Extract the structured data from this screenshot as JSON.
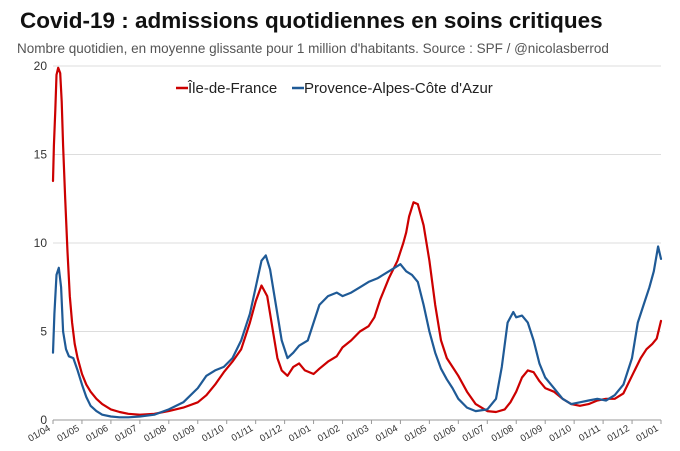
{
  "title": "Covid-19 : admissions quotidiennes en soins critiques",
  "subtitle": "Nombre quotidien, en moyenne glissante pour 1 million d'habitants. Source : SPF / @nicolasberrod",
  "chart_data": {
    "type": "line",
    "title": "Covid-19 : admissions quotidiennes en soins critiques",
    "subtitle": "Nombre quotidien, en moyenne glissante pour 1 million d'habitants. Source : SPF / @nicolasberrod",
    "xlabel": "",
    "ylabel": "",
    "ylim": [
      0,
      20
    ],
    "yticks": [
      0,
      5,
      10,
      15,
      20
    ],
    "xlim": [
      0,
      21
    ],
    "xtick_labels": [
      "01/04",
      "01/05",
      "01/06",
      "01/07",
      "01/08",
      "01/09",
      "01/10",
      "01/11",
      "01/12",
      "01/01",
      "01/02",
      "01/03",
      "01/04",
      "01/05",
      "01/06",
      "01/07",
      "01/08",
      "01/09",
      "01/10",
      "01/11",
      "01/12",
      "01/01"
    ],
    "x_unit": "months since 01/04",
    "grid": "horizontal",
    "legend_position": "top-center",
    "series": [
      {
        "name": "Île-de-France",
        "color": "#cc0000",
        "x": [
          0,
          0.03,
          0.08,
          0.12,
          0.18,
          0.25,
          0.3,
          0.35,
          0.42,
          0.5,
          0.58,
          0.66,
          0.75,
          0.85,
          1.0,
          1.15,
          1.3,
          1.5,
          1.7,
          2.0,
          2.3,
          2.6,
          3.0,
          3.5,
          4.0,
          4.5,
          5.0,
          5.3,
          5.6,
          5.9,
          6.2,
          6.5,
          6.8,
          7.0,
          7.2,
          7.4,
          7.6,
          7.75,
          7.9,
          8.1,
          8.3,
          8.5,
          8.7,
          9.0,
          9.2,
          9.5,
          9.8,
          10.0,
          10.3,
          10.6,
          10.9,
          11.1,
          11.3,
          11.6,
          11.9,
          12.0,
          12.1,
          12.2,
          12.3,
          12.45,
          12.6,
          12.8,
          13.0,
          13.2,
          13.4,
          13.6,
          13.8,
          14.0,
          14.3,
          14.6,
          15.0,
          15.3,
          15.6,
          15.8,
          16.0,
          16.2,
          16.4,
          16.6,
          16.8,
          17.0,
          17.3,
          17.6,
          17.9,
          18.2,
          18.5,
          18.8,
          19.1,
          19.4,
          19.7,
          20.0,
          20.3,
          20.5,
          20.7,
          20.85,
          21.0
        ],
        "values": [
          13.5,
          15.5,
          17.5,
          19.5,
          19.9,
          19.6,
          18.0,
          15.5,
          12.5,
          9.5,
          7.0,
          5.5,
          4.3,
          3.5,
          2.6,
          2.0,
          1.6,
          1.2,
          0.9,
          0.6,
          0.45,
          0.35,
          0.3,
          0.35,
          0.5,
          0.7,
          1.0,
          1.4,
          2.0,
          2.7,
          3.3,
          4.0,
          5.5,
          6.7,
          7.6,
          7.0,
          5.0,
          3.5,
          2.8,
          2.5,
          3.0,
          3.2,
          2.8,
          2.6,
          2.9,
          3.3,
          3.6,
          4.1,
          4.5,
          5.0,
          5.3,
          5.8,
          6.8,
          8.0,
          9.0,
          9.5,
          10.0,
          10.6,
          11.5,
          12.3,
          12.2,
          11.0,
          9.0,
          6.5,
          4.5,
          3.5,
          3.0,
          2.5,
          1.6,
          0.9,
          0.5,
          0.45,
          0.6,
          1.0,
          1.6,
          2.4,
          2.8,
          2.7,
          2.2,
          1.8,
          1.6,
          1.2,
          0.9,
          0.8,
          0.9,
          1.1,
          1.2,
          1.2,
          1.5,
          2.5,
          3.5,
          4.0,
          4.3,
          4.6,
          5.6
        ]
      },
      {
        "name": "Provence-Alpes-Côte d'Azur",
        "color": "#1f5a96",
        "x": [
          0,
          0.05,
          0.12,
          0.2,
          0.28,
          0.35,
          0.45,
          0.55,
          0.7,
          0.85,
          1.0,
          1.15,
          1.3,
          1.5,
          1.7,
          2.0,
          2.3,
          2.6,
          3.0,
          3.5,
          4.0,
          4.5,
          5.0,
          5.3,
          5.6,
          5.9,
          6.2,
          6.5,
          6.8,
          7.0,
          7.2,
          7.35,
          7.5,
          7.7,
          7.9,
          8.1,
          8.3,
          8.5,
          8.8,
          9.0,
          9.2,
          9.5,
          9.8,
          10.0,
          10.3,
          10.6,
          10.9,
          11.2,
          11.5,
          11.8,
          12.0,
          12.2,
          12.4,
          12.6,
          12.8,
          13.0,
          13.2,
          13.4,
          13.6,
          13.8,
          14.0,
          14.3,
          14.6,
          15.0,
          15.3,
          15.5,
          15.7,
          15.9,
          16.0,
          16.2,
          16.4,
          16.6,
          16.8,
          17.0,
          17.3,
          17.6,
          17.9,
          18.2,
          18.5,
          18.8,
          19.1,
          19.4,
          19.7,
          20.0,
          20.2,
          20.4,
          20.6,
          20.75,
          20.9,
          21.0
        ],
        "values": [
          3.8,
          6.0,
          8.2,
          8.6,
          7.5,
          5.0,
          4.0,
          3.6,
          3.5,
          2.8,
          2.0,
          1.3,
          0.8,
          0.5,
          0.3,
          0.2,
          0.15,
          0.15,
          0.2,
          0.3,
          0.6,
          1.0,
          1.8,
          2.5,
          2.8,
          3.0,
          3.5,
          4.5,
          6.0,
          7.5,
          9.0,
          9.3,
          8.5,
          6.5,
          4.5,
          3.5,
          3.8,
          4.2,
          4.5,
          5.5,
          6.5,
          7.0,
          7.2,
          7.0,
          7.2,
          7.5,
          7.8,
          8.0,
          8.3,
          8.6,
          8.8,
          8.4,
          8.2,
          7.8,
          6.5,
          5.0,
          3.8,
          2.9,
          2.3,
          1.8,
          1.2,
          0.7,
          0.5,
          0.6,
          1.2,
          3.0,
          5.5,
          6.1,
          5.8,
          5.9,
          5.5,
          4.5,
          3.2,
          2.4,
          1.8,
          1.2,
          0.9,
          1.0,
          1.1,
          1.2,
          1.1,
          1.4,
          2.0,
          3.5,
          5.5,
          6.5,
          7.5,
          8.4,
          9.8,
          9.1
        ]
      }
    ]
  }
}
